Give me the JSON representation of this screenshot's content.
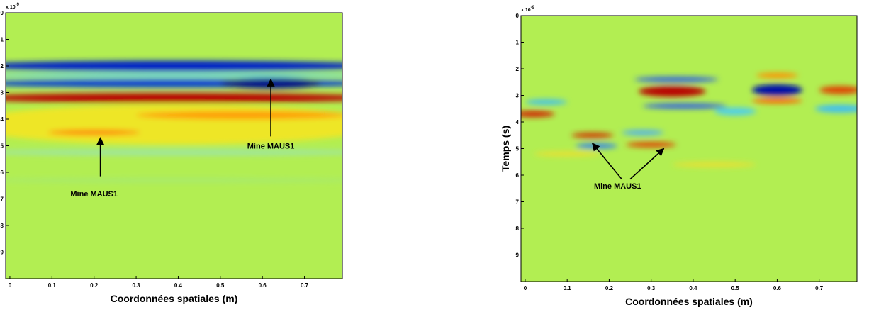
{
  "chart_data": [
    {
      "type": "heatmap",
      "offset_text": {
        "base": "x 10",
        "exponent": "-9"
      },
      "xlabel": "Coordonnées spatiales (m)",
      "xlim": [
        -0.01,
        0.79
      ],
      "xticks": [
        0,
        0.1,
        0.2,
        0.3,
        0.4,
        0.5,
        0.6,
        0.7
      ],
      "ylim": [
        0,
        10
      ],
      "yticks": [
        0,
        1,
        2,
        3,
        4,
        5,
        6,
        7,
        8,
        9
      ],
      "y_reversed": true,
      "annotations": [
        {
          "text": "Mine MAUS1"
        },
        {
          "text": "Mine MAUS1"
        }
      ]
    },
    {
      "type": "heatmap",
      "offset_text": {
        "base": "x 10",
        "exponent": "-9"
      },
      "xlabel": "Coordonnées spatiales (m)",
      "ylabel": "Temps (s)",
      "xlim": [
        -0.01,
        0.79
      ],
      "xticks": [
        0,
        0.1,
        0.2,
        0.3,
        0.4,
        0.5,
        0.6,
        0.7
      ],
      "ylim": [
        0,
        10
      ],
      "yticks": [
        0,
        1,
        2,
        3,
        4,
        5,
        6,
        7,
        8,
        9
      ],
      "y_reversed": true,
      "annotations": [
        {
          "text": "Mine MAUS1"
        }
      ]
    }
  ]
}
